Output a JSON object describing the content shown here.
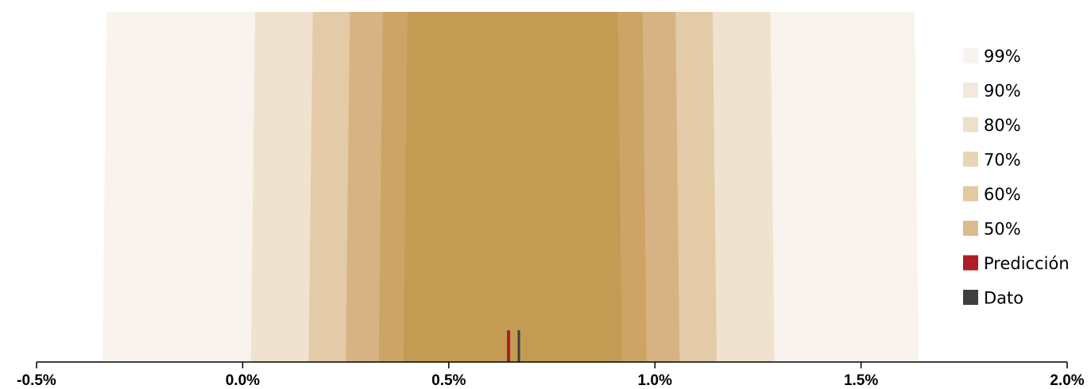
{
  "chart_data": {
    "type": "area",
    "title": "",
    "xlabel": "",
    "ylabel": "",
    "xlim": [
      -0.5,
      2.0
    ],
    "x_ticks": [
      "-0.5%",
      "0.0%",
      "0.5%",
      "1.0%",
      "1.5%",
      "2.0%"
    ],
    "x_tick_values": [
      -0.5,
      0.0,
      0.5,
      1.0,
      1.5,
      2.0
    ],
    "grid": false,
    "legend_position": "right",
    "bands": [
      {
        "name": "99%",
        "low_bottom": -0.34,
        "low_top": -0.33,
        "high_top": 1.63,
        "high_bottom": 1.64,
        "color": "#f8f3ec"
      },
      {
        "name": "90%",
        "low_bottom": 0.02,
        "low_top": 0.03,
        "high_top": 1.28,
        "high_bottom": 1.29,
        "color": "#efe3cf"
      },
      {
        "name": "80%",
        "low_bottom": 0.16,
        "low_top": 0.17,
        "high_top": 1.14,
        "high_bottom": 1.15,
        "color": "#e4cba7"
      },
      {
        "name": "70%",
        "low_bottom": 0.25,
        "low_top": 0.26,
        "high_top": 1.05,
        "high_bottom": 1.06,
        "color": "#d7b384"
      },
      {
        "name": "60%",
        "low_bottom": 0.33,
        "low_top": 0.34,
        "high_top": 0.97,
        "high_bottom": 0.98,
        "color": "#cca465"
      },
      {
        "name": "50%",
        "low_bottom": 0.39,
        "low_top": 0.4,
        "high_top": 0.91,
        "high_bottom": 0.92,
        "color": "#c49b53"
      }
    ],
    "legend_swatch_colors": [
      "#f8f3ec",
      "#f2e9dc",
      "#eddfc9",
      "#e9d5b6",
      "#e3c9a1",
      "#dcbb8b",
      "#b01c28",
      "#3f3f3f"
    ],
    "prediction": {
      "name": "Predicción",
      "value": 0.645,
      "color": "#b01c28"
    },
    "actual": {
      "name": "Dato",
      "value": 0.67,
      "color": "#3f3f3f"
    }
  }
}
